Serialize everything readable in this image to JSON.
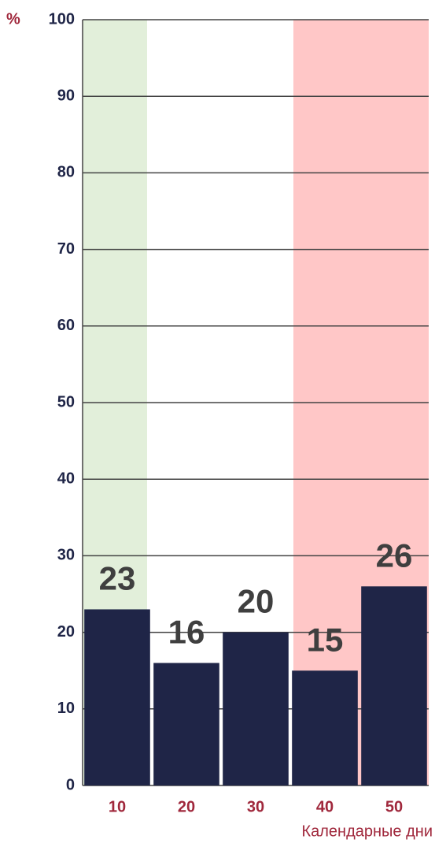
{
  "chart_data": {
    "type": "bar",
    "y_unit": "%",
    "x_axis_label": "Календарные дни",
    "categories": [
      "10",
      "20",
      "30",
      "40",
      "50"
    ],
    "values": [
      23,
      16,
      20,
      15,
      26
    ],
    "color": "#1f2547",
    "ylim": [
      0,
      100
    ],
    "yticks": [
      0,
      10,
      20,
      30,
      40,
      50,
      60,
      70,
      80,
      90,
      100
    ],
    "grid": true
  }
}
